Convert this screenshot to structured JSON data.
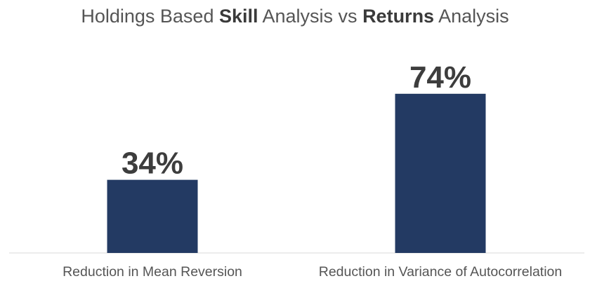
{
  "chart_data": {
    "type": "bar",
    "title_parts": [
      {
        "text": "Holdings Based ",
        "bold": false
      },
      {
        "text": "Skill",
        "bold": true
      },
      {
        "text": " Analysis vs ",
        "bold": false
      },
      {
        "text": "Returns",
        "bold": true
      },
      {
        "text": " Analysis",
        "bold": false
      }
    ],
    "categories": [
      "Reduction in Mean Reversion",
      "Reduction in Variance of Autocorrelation"
    ],
    "values": [
      34,
      74
    ],
    "data_labels": [
      "34%",
      "74%"
    ],
    "unit": "%",
    "ylim": [
      0,
      100
    ],
    "grid": false,
    "legend": "none",
    "colors": {
      "bar": "#233a63",
      "axis": "#d9d9d9",
      "text": "#555555",
      "label": "#3d3d3d"
    }
  }
}
